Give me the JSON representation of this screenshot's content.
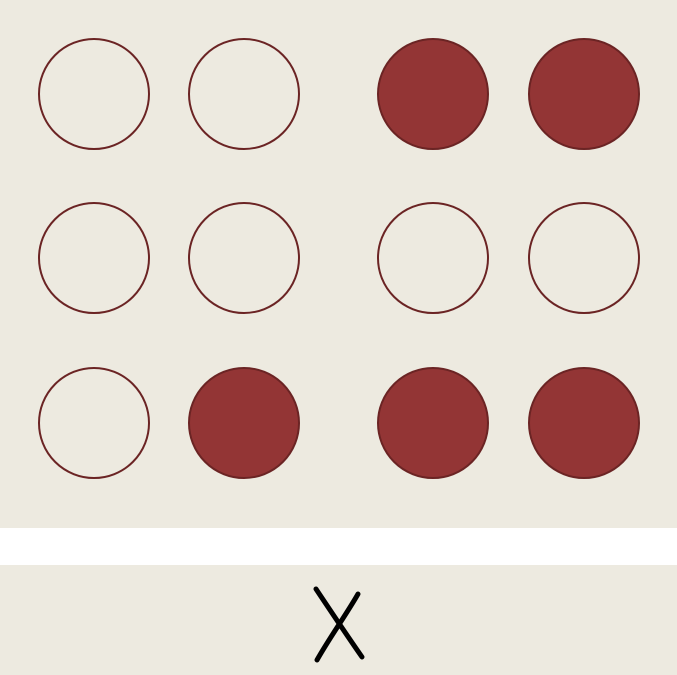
{
  "braille_cell": {
    "rows": [
      [
        false,
        false,
        true,
        true
      ],
      [
        false,
        false,
        false,
        false
      ],
      [
        false,
        true,
        true,
        true
      ]
    ],
    "filled_color": "#933535",
    "outline_color": "#6b2424",
    "panel_color": "#edeae0"
  },
  "answer": {
    "letter": "X",
    "glyph": "handwritten-x"
  }
}
